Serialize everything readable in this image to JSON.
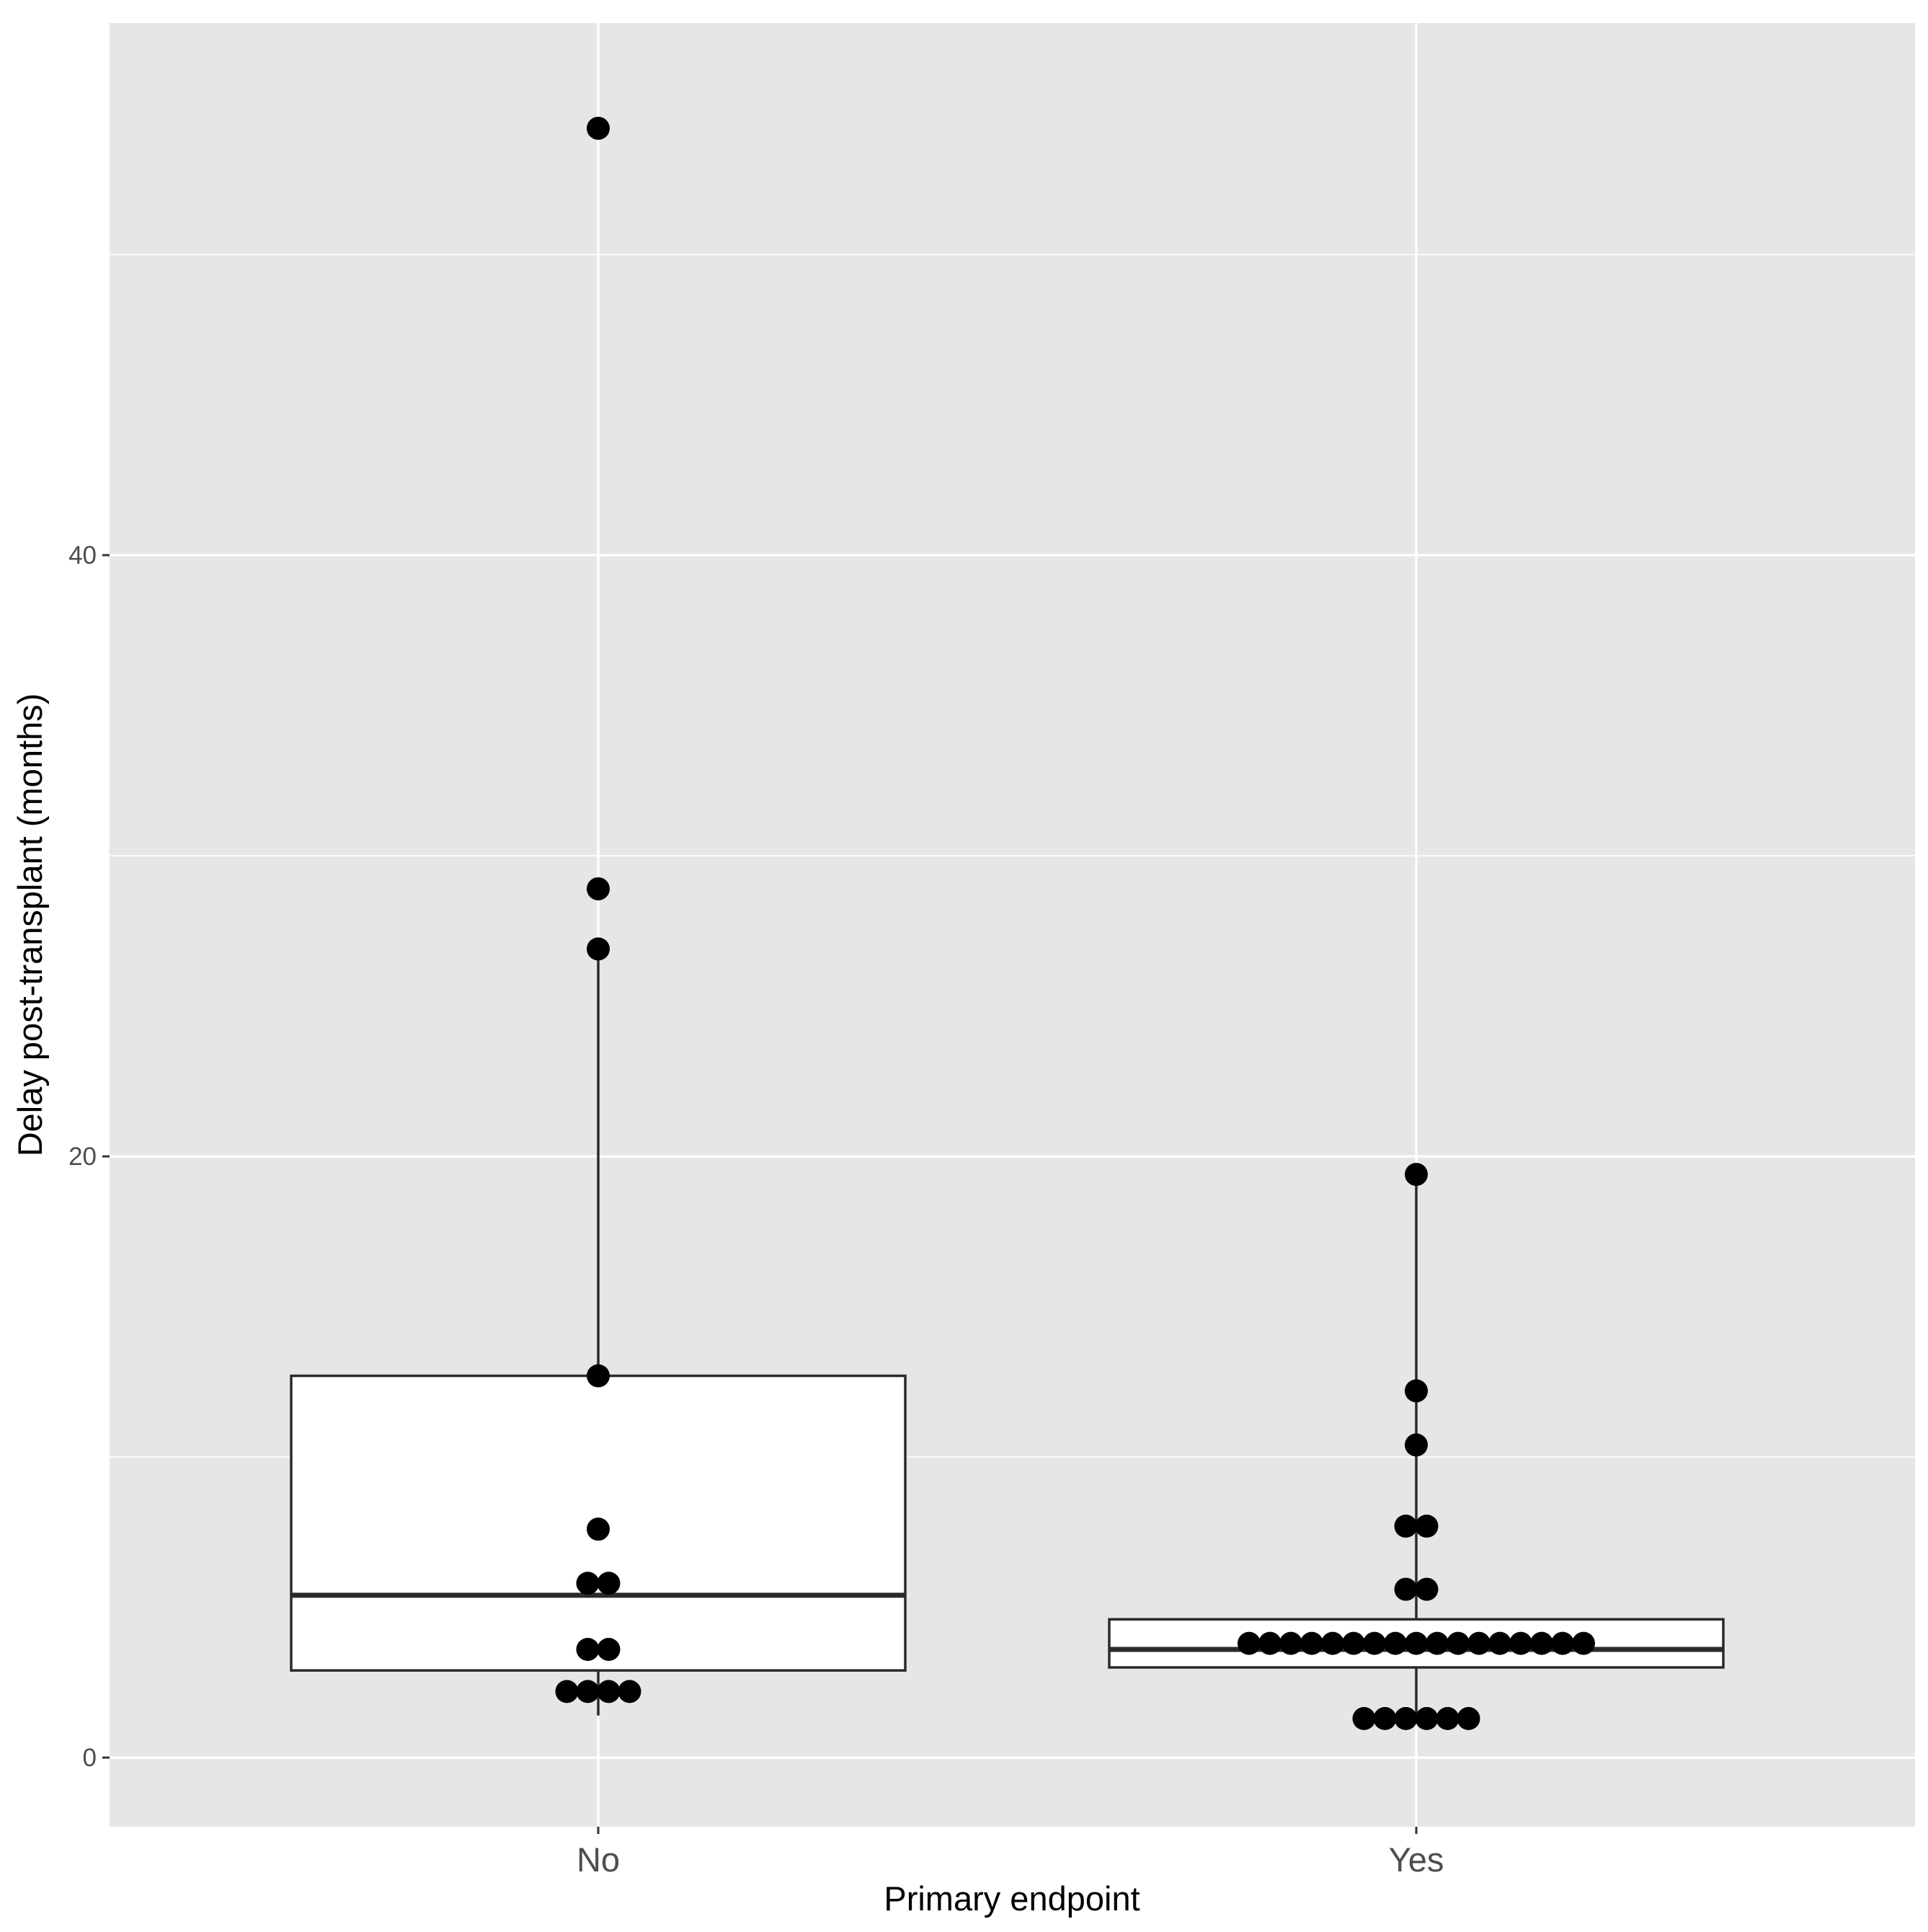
{
  "chart_data": {
    "type": "box",
    "title": "",
    "xlabel": "Primary endpoint",
    "ylabel": "Delay post-transplant (months)",
    "categories": [
      "No",
      "Yes"
    ],
    "ylim": [
      -2.3,
      57.7
    ],
    "yticks": [
      0,
      20,
      40
    ],
    "ytick_labels": [
      "0",
      "20",
      "40"
    ],
    "grid": true,
    "legend": "none",
    "colors": {
      "panel_background": "#e6e6e6",
      "gridline": "#ffffff",
      "box_fill": "#ffffff",
      "box_stroke": "#2a2a2a",
      "point": "#000000"
    },
    "boxes": [
      {
        "category": "No",
        "whisker_low": 1.4,
        "q1": 2.9,
        "median": 5.4,
        "q3": 12.7,
        "whisker_high": 26.7
      },
      {
        "category": "Yes",
        "whisker_low": 1.3,
        "q1": 3.0,
        "median": 3.6,
        "q3": 4.6,
        "whisker_high": 19.4
      }
    ],
    "points": [
      {
        "category": "No",
        "values": [
          54.2,
          28.9,
          26.9,
          12.7,
          7.6,
          5.8,
          5.8,
          3.6,
          3.6,
          2.2,
          2.2,
          2.2,
          2.2
        ]
      },
      {
        "category": "Yes",
        "values": [
          19.4,
          12.2,
          10.4,
          7.7,
          7.7,
          5.6,
          5.6,
          3.8,
          3.8,
          3.8,
          3.8,
          3.8,
          3.8,
          3.8,
          3.8,
          3.8,
          3.8,
          3.8,
          3.8,
          3.8,
          3.8,
          3.8,
          3.8,
          3.8,
          1.3,
          1.3,
          1.3,
          1.3,
          1.3,
          1.3
        ]
      }
    ]
  }
}
